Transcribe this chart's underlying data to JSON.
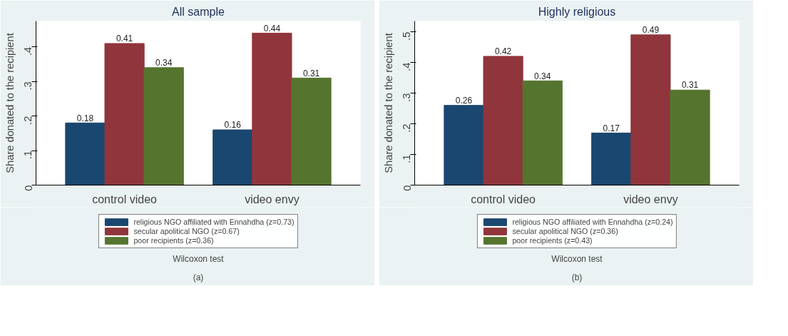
{
  "chart_data": [
    {
      "type": "bar",
      "title": "All sample",
      "ylabel": "Share donated to the recipient",
      "categories": [
        "control video",
        "video envy"
      ],
      "series": [
        {
          "name": "religious NGO affiliated with Ennahdha (z=0.73)",
          "color": "#1a476f",
          "values": [
            0.18,
            0.16
          ]
        },
        {
          "name": "secular apolitical NGO (z=0.67)",
          "color": "#90353b",
          "values": [
            0.41,
            0.44
          ]
        },
        {
          "name": "poor recipients (z=0.36)",
          "color": "#55752f",
          "values": [
            0.34,
            0.31
          ]
        }
      ],
      "ylim": [
        0,
        0.475
      ],
      "yticks": [
        {
          "value": 0,
          "label": "0"
        },
        {
          "value": 0.1,
          "label": ".1"
        },
        {
          "value": 0.2,
          "label": ".2"
        },
        {
          "value": 0.3,
          "label": ".3"
        },
        {
          "value": 0.4,
          "label": ".4"
        }
      ],
      "data_labels": true,
      "legend": "bottom",
      "grid": false,
      "annotations": [
        "Wilcoxon test",
        "(a)"
      ]
    },
    {
      "type": "bar",
      "title": "Highly religious",
      "ylabel": "Share donated to the recipient",
      "categories": [
        "control video",
        "video envy"
      ],
      "series": [
        {
          "name": "religious NGO affiliated with Ennahdha (z=0.24)",
          "color": "#1a476f",
          "values": [
            0.26,
            0.17
          ]
        },
        {
          "name": "secular apolitical NGO (z=0.36)",
          "color": "#90353b",
          "values": [
            0.42,
            0.49
          ]
        },
        {
          "name": "poor recipients (z=0.43)",
          "color": "#55752f",
          "values": [
            0.34,
            0.31
          ]
        }
      ],
      "ylim": [
        0,
        0.535
      ],
      "yticks": [
        {
          "value": 0,
          "label": "0"
        },
        {
          "value": 0.1,
          "label": ".1"
        },
        {
          "value": 0.2,
          "label": ".2"
        },
        {
          "value": 0.3,
          "label": ".3"
        },
        {
          "value": 0.4,
          "label": ".4"
        },
        {
          "value": 0.5,
          "label": ".5"
        }
      ],
      "data_labels": true,
      "legend": "bottom",
      "grid": false,
      "annotations": [
        "Wilcoxon test",
        "(b)"
      ]
    }
  ]
}
